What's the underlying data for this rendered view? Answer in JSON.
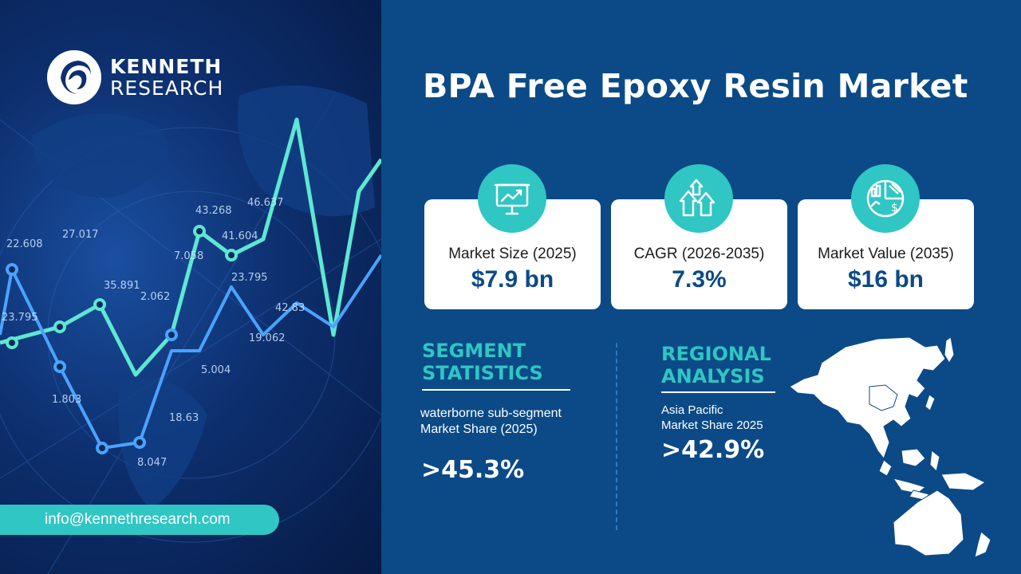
{
  "brand": {
    "line1": "KENNETH",
    "line2": "RESEARCH"
  },
  "contact": {
    "email": "info@kennethresearch.com"
  },
  "title": "BPA Free Epoxy Resin Market",
  "cards": [
    {
      "label": "Market Size (2025)",
      "value": "$7.9 bn",
      "icon": "presentation-chart-icon"
    },
    {
      "label": "CAGR (2026-2035)",
      "value": "7.3%",
      "icon": "growth-arrows-icon"
    },
    {
      "label": "Market Value  (2035)",
      "value": "$16 bn",
      "icon": "pie-chart-dollar-icon"
    }
  ],
  "segment": {
    "heading_line1": "SEGMENT",
    "heading_line2": "STATISTICS",
    "desc_line1": "waterborne sub-segment",
    "desc_line2": "Market Share (2025)",
    "value": ">45.3%"
  },
  "regional": {
    "heading_line1": "REGIONAL",
    "heading_line2": "ANALYSIS",
    "desc_line1": "Asia Pacific",
    "desc_line2": "Market Share 2025",
    "value": ">42.9%"
  },
  "background_numbers": [
    "22.608",
    "27.017",
    "23.795",
    "35.891",
    "1.803",
    "43.268",
    "46.637",
    "7.058",
    "23.795",
    "5.004",
    "18.63",
    "8.047",
    "2.062",
    "19.062",
    "41.604",
    "42.83"
  ],
  "colors": {
    "accent": "#2fc6c4",
    "panel": "#0b4a86",
    "card": "#ffffff",
    "value": "#0b4a86"
  }
}
